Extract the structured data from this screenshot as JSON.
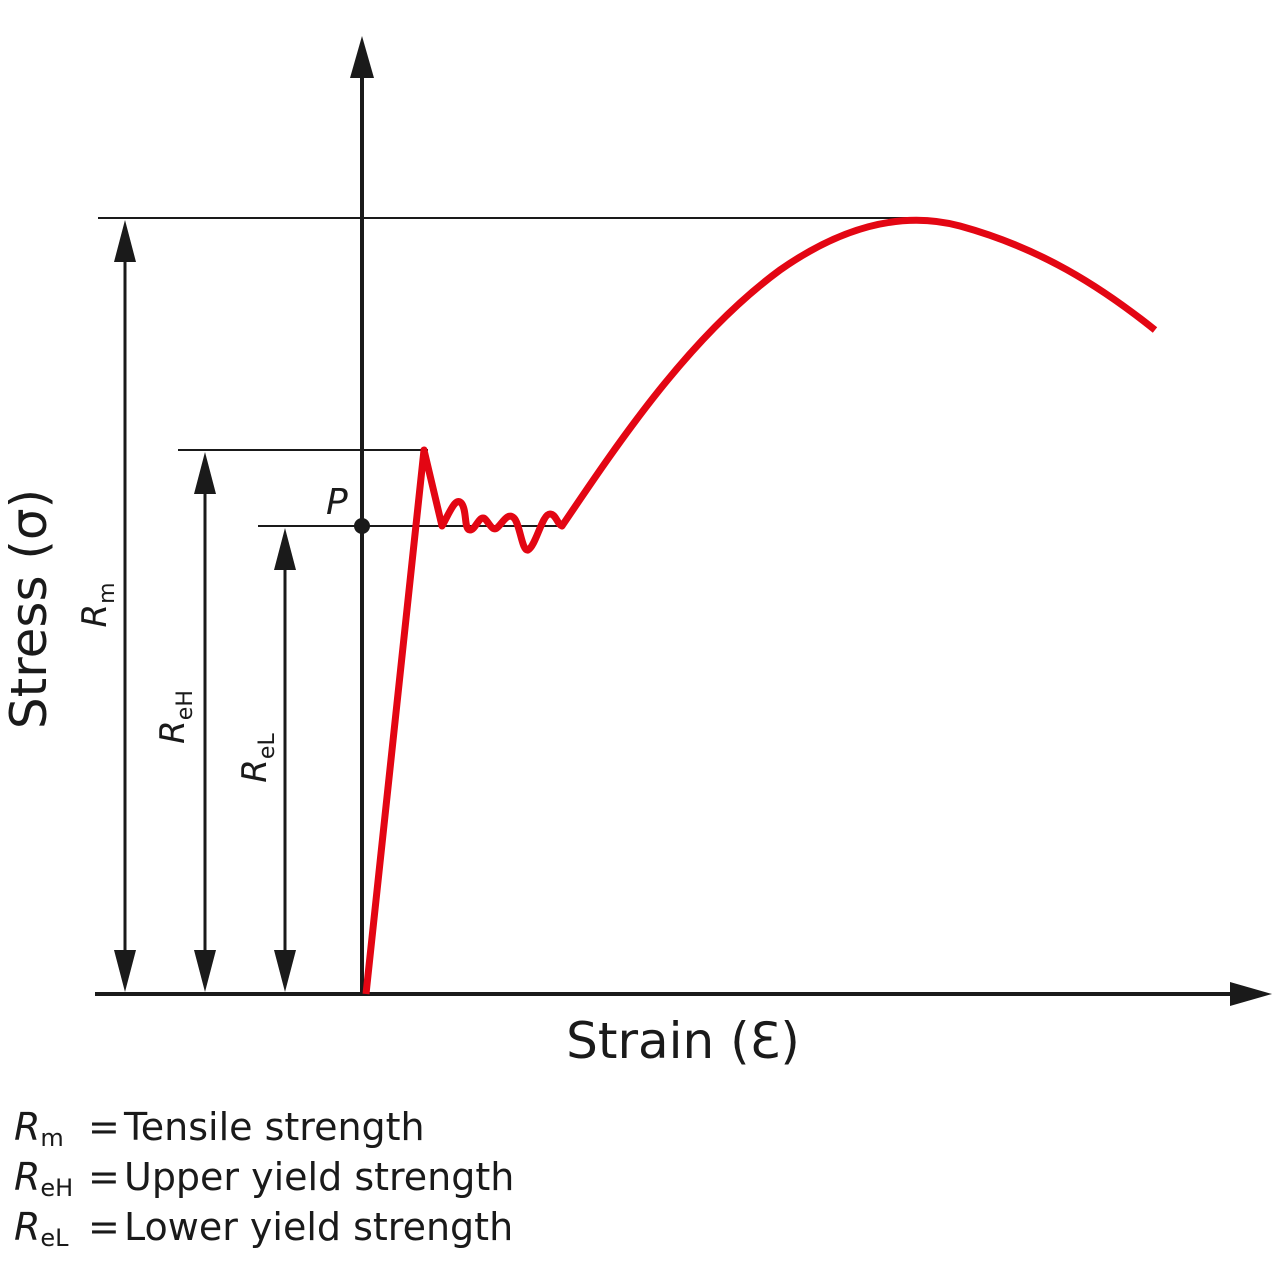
{
  "diagram": {
    "x_axis_label": "Strain (Ɛ)",
    "y_axis_label": "Stress (σ)",
    "point_label": "P",
    "curve_color": "#e30613",
    "line_color": "#1a1a1a",
    "dimensions": [
      {
        "symbol": "R",
        "subscript": "m"
      },
      {
        "symbol": "R",
        "subscript": "eH"
      },
      {
        "symbol": "R",
        "subscript": "eL"
      }
    ]
  },
  "legend": [
    {
      "symbol": "R",
      "subscript": "m",
      "equals": "=",
      "text": "Tensile strength"
    },
    {
      "symbol": "R",
      "subscript": "eH",
      "equals": "=",
      "text": "Upper yield strength"
    },
    {
      "symbol": "R",
      "subscript": "eL",
      "equals": "=",
      "text": "Lower yield strength"
    }
  ]
}
